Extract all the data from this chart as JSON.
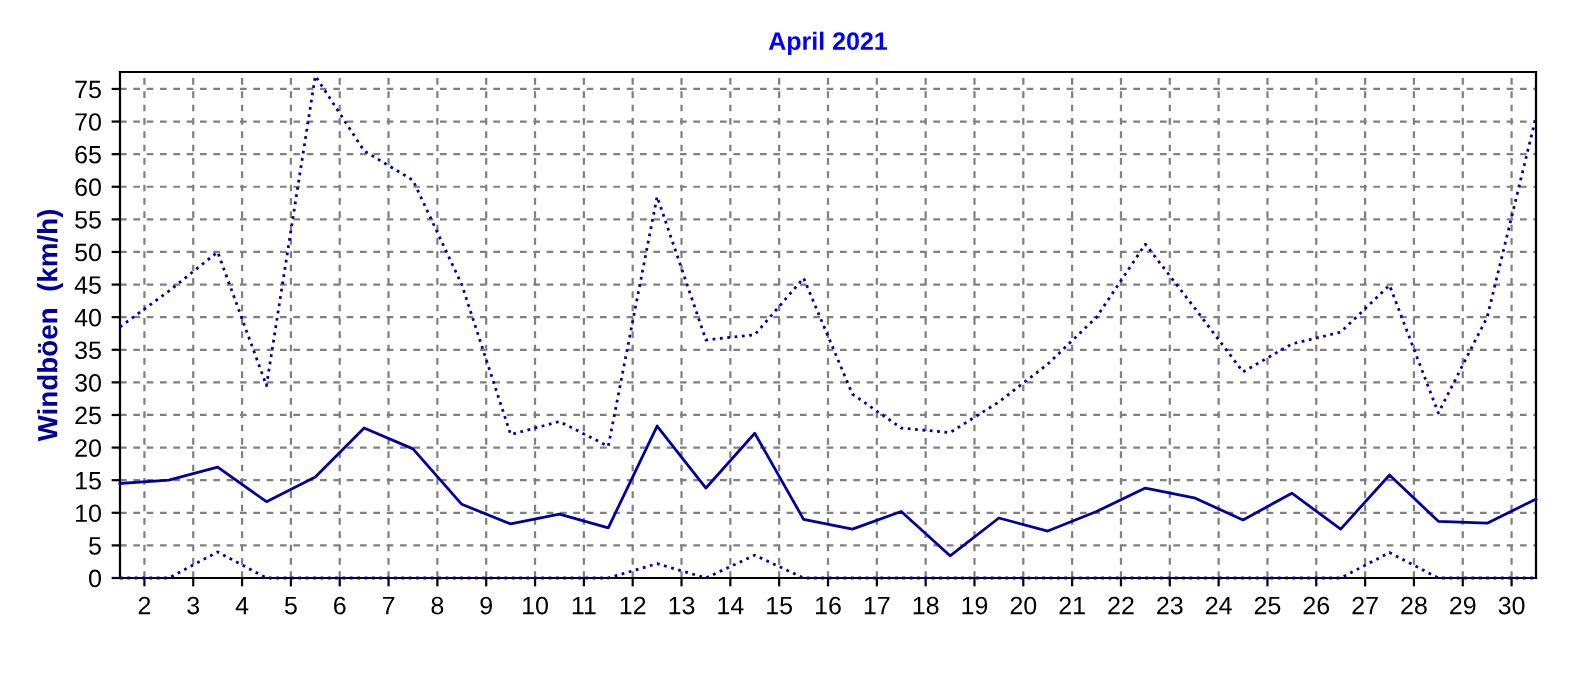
{
  "chart_data": {
    "type": "line",
    "title": "April 2021",
    "ylabel": "Windböen  (km/h)",
    "x": [
      1.5,
      2.5,
      3.5,
      4.5,
      5.5,
      6.5,
      7.5,
      8.5,
      9.5,
      10.5,
      11.5,
      12.5,
      13.5,
      14.5,
      15.5,
      16.5,
      17.5,
      18.5,
      19.5,
      20.5,
      21.5,
      22.5,
      23.5,
      24.5,
      25.5,
      26.5,
      27.5,
      28.5,
      29.5,
      30.5
    ],
    "series": [
      {
        "color": "#0000a0",
        "line_style": "dotted",
        "values": [
          38.5,
          44,
          50,
          29.5,
          77,
          65.5,
          61,
          45,
          22,
          24,
          20.2,
          58.5,
          36.5,
          37.3,
          46,
          28.2,
          23,
          22.3,
          27,
          32.8,
          40,
          51.2,
          41.5,
          31.6,
          35.9,
          37.7,
          44.9,
          25.3,
          40,
          70.7
        ]
      },
      {
        "color": "#0000a0",
        "line_style": "solid",
        "values": [
          14.5,
          15,
          17,
          11.7,
          15.5,
          23,
          19.8,
          11.3,
          8.3,
          9.8,
          7.7,
          23.3,
          13.8,
          22.2,
          9,
          7.5,
          10.2,
          3.4,
          9.2,
          7.2,
          10.2,
          13.8,
          12.3,
          8.9,
          13,
          7.5,
          15.8,
          8.7,
          8.4,
          12.1
        ]
      },
      {
        "color": "#0000a0",
        "line_style": "dotted",
        "values": [
          0,
          0,
          4,
          0,
          0,
          0,
          0,
          0,
          0,
          0,
          0,
          2.2,
          0,
          3.5,
          0,
          0,
          0,
          0,
          0,
          0,
          0,
          0,
          0,
          0,
          0,
          0,
          3.9,
          0,
          0,
          0
        ]
      }
    ],
    "xlim": [
      1.5,
      30.5
    ],
    "ylim": [
      0,
      77.6
    ],
    "xticks": [
      2,
      3,
      4,
      5,
      6,
      7,
      8,
      9,
      10,
      11,
      12,
      13,
      14,
      15,
      16,
      17,
      18,
      19,
      20,
      21,
      22,
      23,
      24,
      25,
      26,
      27,
      28,
      29,
      30
    ],
    "yticks": [
      0,
      5,
      10,
      15,
      20,
      25,
      30,
      35,
      40,
      45,
      50,
      55,
      60,
      65,
      70,
      75
    ],
    "grid": true,
    "legend": false,
    "marker": "none"
  }
}
